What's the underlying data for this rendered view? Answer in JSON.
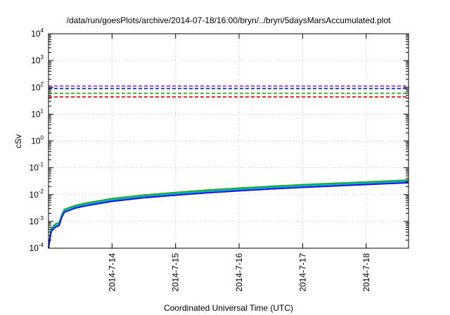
{
  "chart_data": {
    "type": "line",
    "title": "/data/run/goesPlots/archive/2014-07-18/16:00/bryn/../bryn/5daysMarsAccumulated.plot",
    "xlabel": "Coordinated Universal Time (UTC)",
    "ylabel": "cSv",
    "x_unit": "days",
    "xlim": [
      "2014-07-13 00:00",
      "2014-07-18 16:00"
    ],
    "xtick_labels": [
      "2014-7-14",
      "2014-7-15",
      "2014-7-16",
      "2014-7-17",
      "2014-7-18"
    ],
    "xtick_dates": [
      "2014-07-14 00:00",
      "2014-07-15 00:00",
      "2014-07-16 00:00",
      "2014-07-17 00:00",
      "2014-07-18 00:00"
    ],
    "yscale": "log",
    "ylim": [
      0.0001,
      10000
    ],
    "ytick_base": "10",
    "ytick_exponents": [
      "-4",
      "-3",
      "-2",
      "-1",
      "0",
      "1",
      "2",
      "3",
      "4"
    ],
    "grid": true,
    "legend": "none",
    "series": [
      {
        "color": "#22aa22",
        "style": "solid",
        "x": [
          "2014-07-13 00:00",
          "2014-07-13 01:00",
          "2014-07-13 02:30",
          "2014-07-13 04:00",
          "2014-07-13 05:00",
          "2014-07-13 06:00",
          "2014-07-13 08:00",
          "2014-07-13 10:00",
          "2014-07-13 14:00",
          "2014-07-14 00:00",
          "2014-07-14 12:00",
          "2014-07-15 00:00",
          "2014-07-15 12:00",
          "2014-07-16 00:00",
          "2014-07-16 12:00",
          "2014-07-17 00:00",
          "2014-07-17 12:00",
          "2014-07-18 00:00",
          "2014-07-18 16:00"
        ],
        "values": [
          0.0001,
          0.00055,
          0.0008,
          0.0009,
          0.0018,
          0.0028,
          0.0033,
          0.0039,
          0.0048,
          0.0071,
          0.0096,
          0.012,
          0.0148,
          0.0175,
          0.0205,
          0.0235,
          0.0265,
          0.0298,
          0.035
        ]
      },
      {
        "color": "#00aacc",
        "style": "solid",
        "x": [
          "2014-07-13 00:00",
          "2014-07-13 01:00",
          "2014-07-13 02:30",
          "2014-07-13 04:00",
          "2014-07-13 05:00",
          "2014-07-13 06:00",
          "2014-07-13 08:00",
          "2014-07-13 10:00",
          "2014-07-13 14:00",
          "2014-07-14 00:00",
          "2014-07-14 12:00",
          "2014-07-15 00:00",
          "2014-07-15 12:00",
          "2014-07-16 00:00",
          "2014-07-16 12:00",
          "2014-07-17 00:00",
          "2014-07-17 12:00",
          "2014-07-18 00:00",
          "2014-07-18 16:00"
        ],
        "values": [
          0.0001,
          0.00048,
          0.0007,
          0.0008,
          0.0016,
          0.0025,
          0.003,
          0.0035,
          0.0043,
          0.0063,
          0.0085,
          0.0107,
          0.0132,
          0.0156,
          0.0183,
          0.021,
          0.0237,
          0.0266,
          0.0313
        ]
      },
      {
        "color": "#1111ee",
        "style": "solid",
        "x": [
          "2014-07-13 00:00",
          "2014-07-13 01:00",
          "2014-07-13 02:30",
          "2014-07-13 04:00",
          "2014-07-13 05:00",
          "2014-07-13 06:00",
          "2014-07-13 08:00",
          "2014-07-13 10:00",
          "2014-07-13 14:00",
          "2014-07-14 00:00",
          "2014-07-14 12:00",
          "2014-07-15 00:00",
          "2014-07-15 12:00",
          "2014-07-16 00:00",
          "2014-07-16 12:00",
          "2014-07-17 00:00",
          "2014-07-17 12:00",
          "2014-07-18 00:00",
          "2014-07-18 16:00"
        ],
        "values": [
          0.0001,
          0.00042,
          0.0006,
          0.0007,
          0.0014,
          0.0022,
          0.0026,
          0.0031,
          0.0038,
          0.0056,
          0.0076,
          0.0095,
          0.0117,
          0.0138,
          0.0162,
          0.0186,
          0.021,
          0.0236,
          0.0277
        ]
      },
      {
        "color": "#9933cc",
        "style": "dashed",
        "x": [
          "2014-07-13 00:00",
          "2014-07-18 16:00"
        ],
        "values": [
          112,
          112
        ]
      },
      {
        "color": "#2233bb",
        "style": "dashed",
        "x": [
          "2014-07-13 00:00",
          "2014-07-18 16:00"
        ],
        "values": [
          90,
          90
        ]
      },
      {
        "color": "#22bb22",
        "style": "dashed",
        "x": [
          "2014-07-13 00:00",
          "2014-07-18 16:00"
        ],
        "values": [
          60,
          60
        ]
      },
      {
        "color": "#ee1111",
        "style": "dashed",
        "x": [
          "2014-07-13 00:00",
          "2014-07-18 16:00"
        ],
        "values": [
          44,
          44
        ]
      }
    ]
  }
}
